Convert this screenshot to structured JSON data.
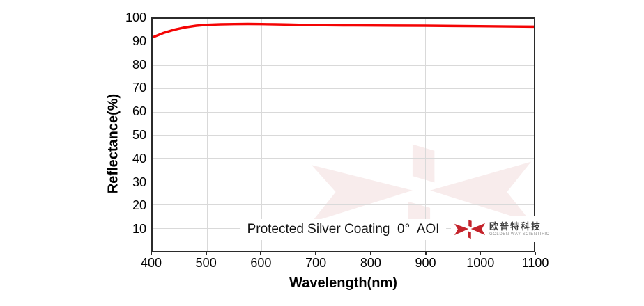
{
  "colors": {
    "curve_red": "#f40404",
    "brand_red": "#c4232b",
    "watermark_pink": "#f8ecec",
    "gridline_gray": "#d9d9d9",
    "axis_border": "#2b2b2b"
  },
  "chart_data": {
    "type": "line",
    "annotation": "Protected Silver Coating  0°  AOI",
    "xlabel": "Wavelength(nm)",
    "ylabel": "Reflectance(%)",
    "xlim": [
      400,
      1100
    ],
    "ylim": [
      0,
      100
    ],
    "xticks": [
      400,
      500,
      600,
      700,
      800,
      900,
      1000,
      1100
    ],
    "yticks": [
      10,
      20,
      30,
      40,
      50,
      60,
      70,
      80,
      90,
      100
    ],
    "grid": true,
    "legend": "none",
    "series": [
      {
        "name": "Protected Silver Coating 0° AOI",
        "color": "#f40404",
        "x": [
          400,
          420,
          440,
          460,
          480,
          500,
          525,
          550,
          575,
          600,
          625,
          650,
          675,
          700,
          750,
          800,
          850,
          900,
          950,
          1000,
          1050,
          1100
        ],
        "y": [
          92.0,
          93.9,
          95.3,
          96.3,
          97.0,
          97.4,
          97.6,
          97.7,
          97.75,
          97.7,
          97.6,
          97.5,
          97.35,
          97.25,
          97.15,
          97.1,
          97.05,
          97.0,
          96.9,
          96.8,
          96.7,
          96.6
        ]
      }
    ]
  },
  "branding": {
    "company_cn": "欧普特科技",
    "company_en": "GOLDEN WAY SCIENTIFIC"
  }
}
